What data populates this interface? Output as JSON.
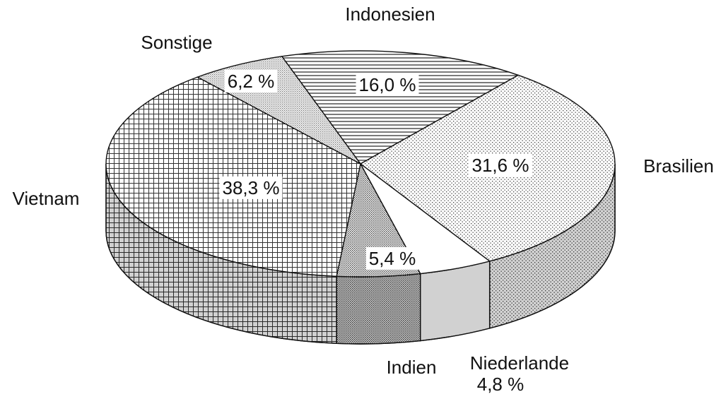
{
  "chart_data": {
    "type": "pie3d",
    "categories": [
      "Indonesien",
      "Brasilien",
      "Niederlande",
      "Indien",
      "Vietnam",
      "Sonstige"
    ],
    "values": [
      16.0,
      31.6,
      4.8,
      5.4,
      38.3,
      6.2
    ],
    "value_labels": [
      "16,0 %",
      "31,6 %",
      "4,8 %",
      "5,4 %",
      "38,3 %",
      "6,2 %"
    ],
    "patterns": [
      "hlines",
      "dots",
      "none",
      "densedots",
      "grid",
      "lightdots"
    ]
  }
}
